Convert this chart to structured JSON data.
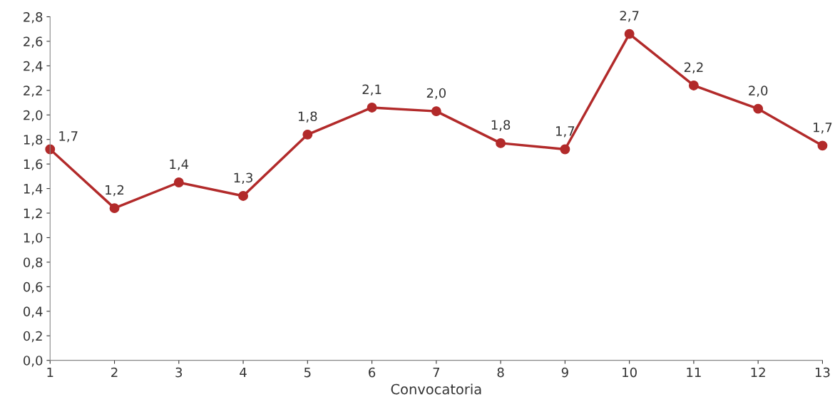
{
  "chart_data": {
    "type": "line",
    "xlabel": "Convocatoria",
    "x": [
      1,
      2,
      3,
      4,
      5,
      6,
      7,
      8,
      9,
      10,
      11,
      12,
      13
    ],
    "series": [
      {
        "color": "#b22a2a",
        "values": [
          1.72,
          1.24,
          1.45,
          1.34,
          1.84,
          2.06,
          2.03,
          1.77,
          1.72,
          2.66,
          2.24,
          2.05,
          1.75
        ],
        "value_labels": [
          "1,7",
          "1,2",
          "1,4",
          "1,3",
          "1,8",
          "2,1",
          "2,0",
          "1,8",
          "1,7",
          "2,7",
          "2,2",
          "2,0",
          "1,7"
        ]
      }
    ],
    "xlim": [
      1,
      13
    ],
    "xticks": [
      1,
      2,
      3,
      4,
      5,
      6,
      7,
      8,
      9,
      10,
      11,
      12,
      13
    ],
    "ylim": [
      0,
      2.8
    ],
    "yticks": [
      {
        "value": 0,
        "label": "0,0"
      },
      {
        "value": 0.2,
        "label": "0,2"
      },
      {
        "value": 0.4,
        "label": "0,4"
      },
      {
        "value": 0.6,
        "label": "0,6"
      },
      {
        "value": 0.8,
        "label": "0,8"
      },
      {
        "value": 1.0,
        "label": "1,0"
      },
      {
        "value": 1.2,
        "label": "1,2"
      },
      {
        "value": 1.4,
        "label": "1,4"
      },
      {
        "value": 1.6,
        "label": "1,6"
      },
      {
        "value": 1.8,
        "label": "1,8"
      },
      {
        "value": 2.0,
        "label": "2,0"
      },
      {
        "value": 2.2,
        "label": "2,2"
      },
      {
        "value": 2.4,
        "label": "2,4"
      },
      {
        "value": 2.6,
        "label": "2,6"
      },
      {
        "value": 2.8,
        "label": "2,8"
      }
    ],
    "marker": "circle",
    "line_style": "solid",
    "grid": false,
    "legend": false
  }
}
